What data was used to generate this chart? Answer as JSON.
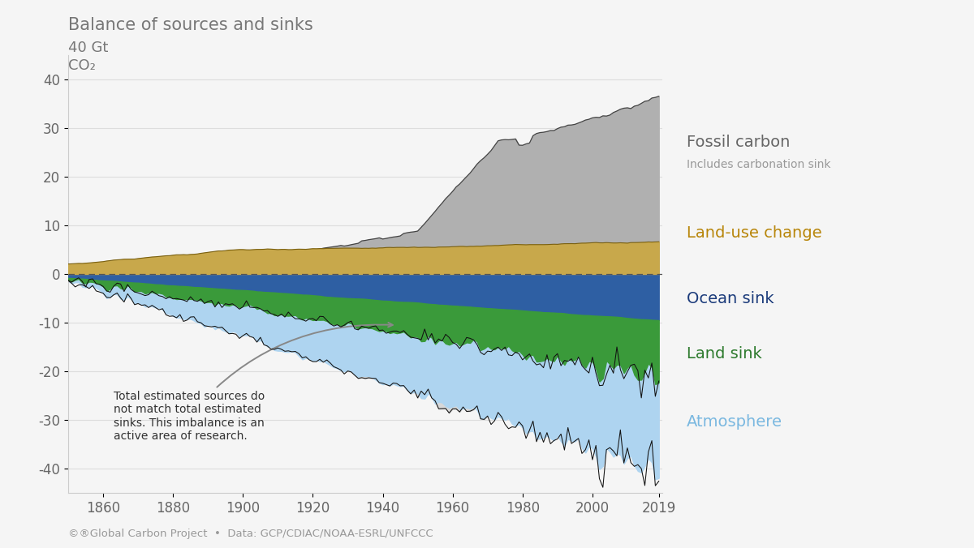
{
  "title": "Balance of sources and sinks",
  "ylim": [
    -45,
    45
  ],
  "xlim": [
    1850,
    2020
  ],
  "xticks": [
    1860,
    1880,
    1900,
    1920,
    1940,
    1960,
    1980,
    2000,
    2019
  ],
  "yticks": [
    -40,
    -30,
    -20,
    -10,
    0,
    10,
    20,
    30,
    40
  ],
  "colors": {
    "fossil": "#b0b0b0",
    "land_use": "#c8a84b",
    "ocean": "#2e5fa3",
    "land_sink": "#3a9a3a",
    "atmosphere": "#aed4f0",
    "background": "#f5f5f5",
    "grid": "#dddddd",
    "spine": "#cccccc",
    "tick": "#666666"
  },
  "legend": {
    "fossil_label": "Fossil carbon",
    "fossil_sub": "Includes carbonation sink",
    "fossil_color": "#666666",
    "fossil_sub_color": "#999999",
    "land_use_label": "Land-use change",
    "land_use_color": "#b8860b",
    "ocean_label": "Ocean sink",
    "ocean_color": "#1a3a7a",
    "land_sink_label": "Land sink",
    "land_sink_color": "#2d7a2d",
    "atmos_label": "Atmosphere",
    "atmos_color": "#7ab8e0"
  },
  "annotation": "Total estimated sources do\nnot match total estimated\nsinks. This imbalance is an\nactive area of research.",
  "footer": "©®Global Carbon Project  •  Data: GCP/CDIAC/NOAA-ESRL/UNFCCC",
  "ylabel_line1": "40 Gt",
  "ylabel_line2": "CO₂"
}
